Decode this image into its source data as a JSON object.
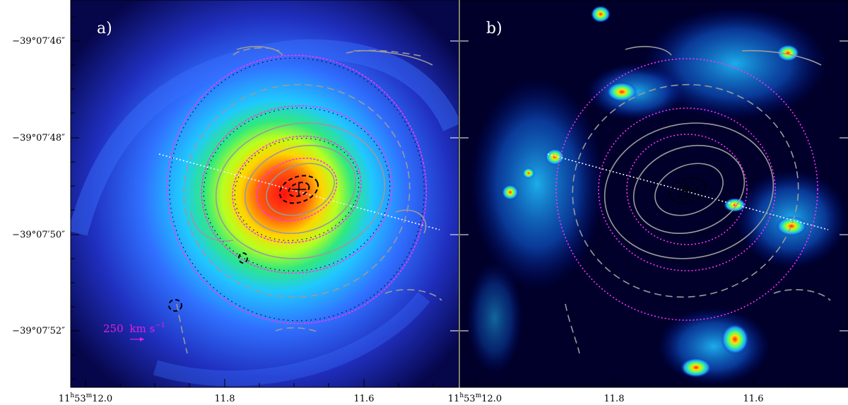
{
  "figure": {
    "panels": [
      {
        "id": "a",
        "label": "a)"
      },
      {
        "id": "b",
        "label": "b)"
      }
    ],
    "dec_ticks": [
      "−39°07′46″",
      "−39°07′48″",
      "−39°07′50″",
      "−39°07′52″"
    ],
    "ra_ticks": {
      "first": {
        "h": "11",
        "hs": "h",
        "m": "53",
        "ms": "m",
        "s": "12.0",
        "ss": "s"
      },
      "others": [
        "11.8",
        "11.6"
      ]
    },
    "scale_bar": {
      "value": "250",
      "unit": "km s",
      "exp": "−1"
    },
    "colors": {
      "background_dark": "#00002a",
      "model_contours": "#ff30ff",
      "positive_contours": "#9a9a9a",
      "negative_contours": "#000000",
      "major_axis": "#ffffff"
    }
  }
}
